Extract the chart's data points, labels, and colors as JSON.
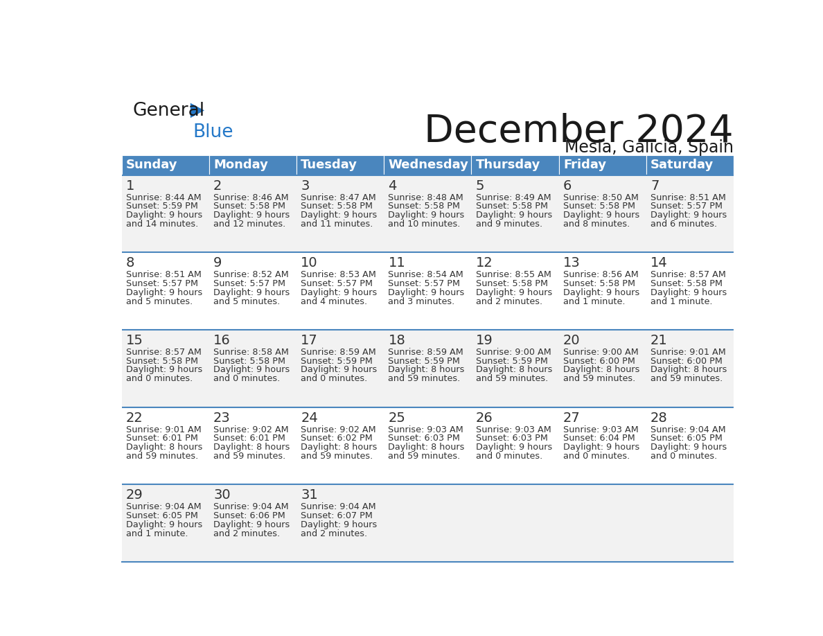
{
  "title": "December 2024",
  "subtitle": "Mesia, Galicia, Spain",
  "days_of_week": [
    "Sunday",
    "Monday",
    "Tuesday",
    "Wednesday",
    "Thursday",
    "Friday",
    "Saturday"
  ],
  "header_bg": "#4a86be",
  "header_text": "#ffffff",
  "cell_bg_odd": "#f2f2f2",
  "cell_bg_even": "#ffffff",
  "cell_text": "#333333",
  "border_color": "#4a86be",
  "title_color": "#1a1a1a",
  "subtitle_color": "#1a1a1a",
  "logo_black": "#1a1a1a",
  "logo_blue": "#2478c8",
  "triangle_blue": "#2478c8",
  "calendar": [
    [
      {
        "day": 1,
        "sunrise": "8:44 AM",
        "sunset": "5:59 PM",
        "daylight_hours": 9,
        "daylight_minutes": 14
      },
      {
        "day": 2,
        "sunrise": "8:46 AM",
        "sunset": "5:58 PM",
        "daylight_hours": 9,
        "daylight_minutes": 12
      },
      {
        "day": 3,
        "sunrise": "8:47 AM",
        "sunset": "5:58 PM",
        "daylight_hours": 9,
        "daylight_minutes": 11
      },
      {
        "day": 4,
        "sunrise": "8:48 AM",
        "sunset": "5:58 PM",
        "daylight_hours": 9,
        "daylight_minutes": 10
      },
      {
        "day": 5,
        "sunrise": "8:49 AM",
        "sunset": "5:58 PM",
        "daylight_hours": 9,
        "daylight_minutes": 9
      },
      {
        "day": 6,
        "sunrise": "8:50 AM",
        "sunset": "5:58 PM",
        "daylight_hours": 9,
        "daylight_minutes": 8
      },
      {
        "day": 7,
        "sunrise": "8:51 AM",
        "sunset": "5:57 PM",
        "daylight_hours": 9,
        "daylight_minutes": 6
      }
    ],
    [
      {
        "day": 8,
        "sunrise": "8:51 AM",
        "sunset": "5:57 PM",
        "daylight_hours": 9,
        "daylight_minutes": 5
      },
      {
        "day": 9,
        "sunrise": "8:52 AM",
        "sunset": "5:57 PM",
        "daylight_hours": 9,
        "daylight_minutes": 5
      },
      {
        "day": 10,
        "sunrise": "8:53 AM",
        "sunset": "5:57 PM",
        "daylight_hours": 9,
        "daylight_minutes": 4
      },
      {
        "day": 11,
        "sunrise": "8:54 AM",
        "sunset": "5:57 PM",
        "daylight_hours": 9,
        "daylight_minutes": 3
      },
      {
        "day": 12,
        "sunrise": "8:55 AM",
        "sunset": "5:58 PM",
        "daylight_hours": 9,
        "daylight_minutes": 2
      },
      {
        "day": 13,
        "sunrise": "8:56 AM",
        "sunset": "5:58 PM",
        "daylight_hours": 9,
        "daylight_minutes": 1
      },
      {
        "day": 14,
        "sunrise": "8:57 AM",
        "sunset": "5:58 PM",
        "daylight_hours": 9,
        "daylight_minutes": 1
      }
    ],
    [
      {
        "day": 15,
        "sunrise": "8:57 AM",
        "sunset": "5:58 PM",
        "daylight_hours": 9,
        "daylight_minutes": 0
      },
      {
        "day": 16,
        "sunrise": "8:58 AM",
        "sunset": "5:58 PM",
        "daylight_hours": 9,
        "daylight_minutes": 0
      },
      {
        "day": 17,
        "sunrise": "8:59 AM",
        "sunset": "5:59 PM",
        "daylight_hours": 9,
        "daylight_minutes": 0
      },
      {
        "day": 18,
        "sunrise": "8:59 AM",
        "sunset": "5:59 PM",
        "daylight_hours": 8,
        "daylight_minutes": 59
      },
      {
        "day": 19,
        "sunrise": "9:00 AM",
        "sunset": "5:59 PM",
        "daylight_hours": 8,
        "daylight_minutes": 59
      },
      {
        "day": 20,
        "sunrise": "9:00 AM",
        "sunset": "6:00 PM",
        "daylight_hours": 8,
        "daylight_minutes": 59
      },
      {
        "day": 21,
        "sunrise": "9:01 AM",
        "sunset": "6:00 PM",
        "daylight_hours": 8,
        "daylight_minutes": 59
      }
    ],
    [
      {
        "day": 22,
        "sunrise": "9:01 AM",
        "sunset": "6:01 PM",
        "daylight_hours": 8,
        "daylight_minutes": 59
      },
      {
        "day": 23,
        "sunrise": "9:02 AM",
        "sunset": "6:01 PM",
        "daylight_hours": 8,
        "daylight_minutes": 59
      },
      {
        "day": 24,
        "sunrise": "9:02 AM",
        "sunset": "6:02 PM",
        "daylight_hours": 8,
        "daylight_minutes": 59
      },
      {
        "day": 25,
        "sunrise": "9:03 AM",
        "sunset": "6:03 PM",
        "daylight_hours": 8,
        "daylight_minutes": 59
      },
      {
        "day": 26,
        "sunrise": "9:03 AM",
        "sunset": "6:03 PM",
        "daylight_hours": 9,
        "daylight_minutes": 0
      },
      {
        "day": 27,
        "sunrise": "9:03 AM",
        "sunset": "6:04 PM",
        "daylight_hours": 9,
        "daylight_minutes": 0
      },
      {
        "day": 28,
        "sunrise": "9:04 AM",
        "sunset": "6:05 PM",
        "daylight_hours": 9,
        "daylight_minutes": 0
      }
    ],
    [
      {
        "day": 29,
        "sunrise": "9:04 AM",
        "sunset": "6:05 PM",
        "daylight_hours": 9,
        "daylight_minutes": 1
      },
      {
        "day": 30,
        "sunrise": "9:04 AM",
        "sunset": "6:06 PM",
        "daylight_hours": 9,
        "daylight_minutes": 2
      },
      {
        "day": 31,
        "sunrise": "9:04 AM",
        "sunset": "6:07 PM",
        "daylight_hours": 9,
        "daylight_minutes": 2
      },
      null,
      null,
      null,
      null
    ]
  ]
}
